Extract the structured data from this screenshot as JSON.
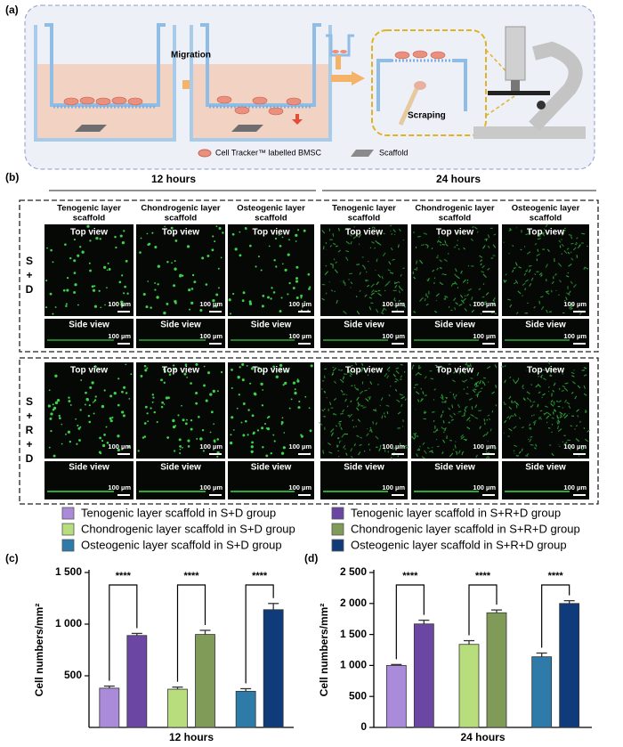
{
  "panel_labels": [
    "(a)",
    "(b)",
    "(c)",
    "(d)"
  ],
  "schematic": {
    "steps": [
      "Migration",
      "Scraping"
    ],
    "legend": [
      "Cell Tracker™ labelled BMSC",
      "Scaffold"
    ]
  },
  "microscopy": {
    "times": [
      "12 hours",
      "24 hours"
    ],
    "scaffolds": [
      [
        "Tenogenic layer",
        "scaffold"
      ],
      [
        "Chondrogenic layer",
        "scaffold"
      ],
      [
        "Osteogenic layer",
        "scaffold"
      ]
    ],
    "views": [
      "Top view",
      "Side view"
    ],
    "scale_bar": "100 µm",
    "groups": [
      "S+D",
      "S+R+D"
    ]
  },
  "chart_data": [
    {
      "type": "bar",
      "y_label": "Cell numbers/mm²",
      "x_label": "12 hours",
      "categories": [
        null,
        null,
        null
      ],
      "ylim": [
        0,
        1500
      ],
      "yticks": [
        500,
        {
          "value": 1000,
          "label": "1 000"
        },
        {
          "value": 1500,
          "label": "1 500"
        }
      ],
      "annotations": [
        "****",
        "****",
        "****"
      ],
      "series": [
        {
          "name": "Tenogenic layer scaffold in S+D group",
          "color": "#a98bd9",
          "values": [
            380,
            null,
            null
          ],
          "errors": [
            20,
            null,
            null
          ]
        },
        {
          "name": "Tenogenic layer scaffold in S+R+D group",
          "color": "#6b47a3",
          "values": [
            890,
            null,
            null
          ],
          "errors": [
            20,
            null,
            null
          ]
        },
        {
          "name": "Chondrogenic layer scaffold in S+D group",
          "color": "#b7dd7c",
          "values": [
            null,
            370,
            null
          ],
          "errors": [
            null,
            20,
            null
          ]
        },
        {
          "name": "Chondrogenic layer scaffold in S+R+D group",
          "color": "#809a58",
          "values": [
            null,
            900,
            null
          ],
          "errors": [
            null,
            40,
            null
          ]
        },
        {
          "name": "Osteogenic layer scaffold in S+D group",
          "color": "#2e7aa8",
          "values": [
            null,
            null,
            350
          ],
          "errors": [
            null,
            null,
            25
          ]
        },
        {
          "name": "Osteogenic layer scaffold in S+R+D group",
          "color": "#103b7a",
          "values": [
            null,
            null,
            1140
          ],
          "errors": [
            null,
            null,
            60
          ]
        }
      ]
    },
    {
      "type": "bar",
      "y_label": "Cell numbers/mm²",
      "x_label": "24 hours",
      "categories": [
        null,
        null,
        null
      ],
      "ylim": [
        0,
        2500
      ],
      "yticks": [
        0,
        500,
        {
          "value": 1000,
          "label": "1 000"
        },
        {
          "value": 1500,
          "label": "1 500"
        },
        {
          "value": 2000,
          "label": "2 000"
        },
        {
          "value": 2500,
          "label": "2 500"
        }
      ],
      "annotations": [
        "****",
        "****",
        "****"
      ],
      "series": [
        {
          "color": "#a98bd9",
          "values": [
            1000,
            null,
            null
          ],
          "errors": [
            15,
            null,
            null
          ]
        },
        {
          "color": "#6b47a3",
          "values": [
            1670,
            null,
            null
          ],
          "errors": [
            60,
            null,
            null
          ]
        },
        {
          "color": "#b7dd7c",
          "values": [
            null,
            1340,
            null
          ],
          "errors": [
            null,
            60,
            null
          ]
        },
        {
          "color": "#809a58",
          "values": [
            null,
            1850,
            null
          ],
          "errors": [
            null,
            45,
            null
          ]
        },
        {
          "color": "#2e7aa8",
          "values": [
            null,
            null,
            1140
          ],
          "errors": [
            null,
            null,
            60
          ]
        },
        {
          "color": "#103b7a",
          "values": [
            null,
            null,
            2000
          ],
          "errors": [
            null,
            null,
            45
          ]
        }
      ]
    }
  ]
}
